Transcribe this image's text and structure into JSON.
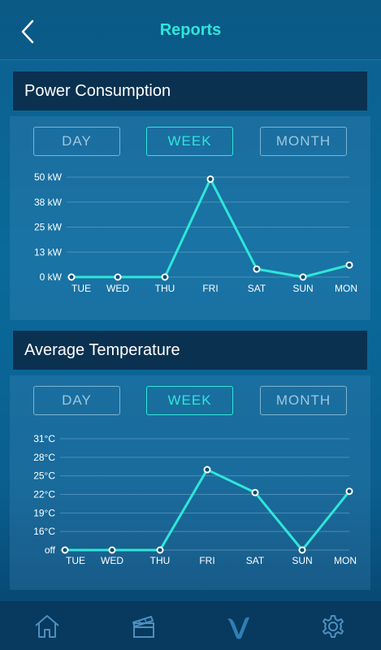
{
  "header": {
    "title": "Reports",
    "back_icon": "chevron-left-icon"
  },
  "colors": {
    "accent": "#2fe6d8",
    "line": "#2fe6d8",
    "section_bg": "#0a3150"
  },
  "power": {
    "title": "Power Consumption",
    "tabs": {
      "day": "DAY",
      "week": "WEEK",
      "month": "MONTH",
      "selected": "WEEK"
    }
  },
  "temperature": {
    "title": "Average Temperature",
    "tabs": {
      "day": "DAY",
      "week": "WEEK",
      "month": "MONTH",
      "selected": "WEEK"
    }
  },
  "chart_data": [
    {
      "type": "line",
      "categories": [
        "TUE",
        "WED",
        "THU",
        "FRI",
        "SAT",
        "SUN",
        "MON"
      ],
      "y_tick_labels": [
        "0 kW",
        "13 kW",
        "25 kW",
        "38 kW",
        "50 kW"
      ],
      "ylim": [
        0,
        50
      ],
      "values": [
        0,
        0,
        0,
        49,
        4,
        0,
        6
      ],
      "grid": true
    },
    {
      "type": "line",
      "categories": [
        "TUE",
        "WED",
        "THU",
        "FRI",
        "SAT",
        "SUN",
        "MON"
      ],
      "y_tick_labels": [
        "off",
        "16°C",
        "19°C",
        "22°C",
        "25°C",
        "28°C",
        "31°C"
      ],
      "ylim": [
        13,
        31
      ],
      "values": [
        13,
        13,
        13,
        26,
        22.3,
        13,
        22.5
      ],
      "grid": true
    }
  ],
  "bottom_nav": [
    {
      "icon": "home-icon"
    },
    {
      "icon": "clapperboard-icon"
    },
    {
      "icon": "brand-logo-icon"
    },
    {
      "icon": "gear-icon"
    }
  ]
}
